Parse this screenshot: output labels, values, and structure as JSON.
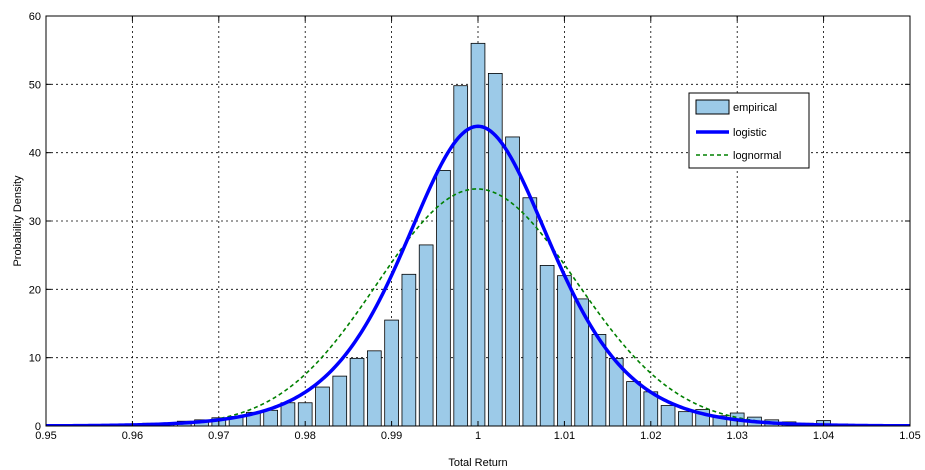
{
  "chart_data": {
    "type": "bar",
    "xlabel": "Total Return",
    "ylabel": "Probability Density",
    "xlim": [
      0.95,
      1.05
    ],
    "ylim": [
      0,
      60
    ],
    "xticks": [
      0.95,
      0.96,
      0.97,
      0.98,
      0.99,
      1,
      1.01,
      1.02,
      1.03,
      1.04,
      1.05
    ],
    "xtick_labels": [
      "0.95",
      "0.96",
      "0.97",
      "0.98",
      "0.99",
      "1",
      "1.01",
      "1.02",
      "1.03",
      "1.04",
      "1.05"
    ],
    "yticks": [
      0,
      10,
      20,
      30,
      40,
      50,
      60
    ],
    "ytick_labels": [
      "0",
      "10",
      "20",
      "30",
      "40",
      "50",
      "60"
    ],
    "grid": true,
    "legend_position": "top-right",
    "bin_width": 0.002,
    "histogram": {
      "name": "empirical",
      "color": "#9ccae8",
      "edge_color": "#000000",
      "centers": [
        0.95,
        0.952,
        0.954,
        0.956,
        0.958,
        0.96,
        0.962,
        0.964,
        0.966,
        0.968,
        0.97,
        0.972,
        0.974,
        0.976,
        0.978,
        0.98,
        0.982,
        0.984,
        0.986,
        0.988,
        0.99,
        0.992,
        0.994,
        0.996,
        0.998,
        1.0,
        1.002,
        1.004,
        1.006,
        1.008,
        1.01,
        1.012,
        1.014,
        1.016,
        1.018,
        1.02,
        1.022,
        1.024,
        1.026,
        1.028,
        1.03,
        1.032,
        1.034,
        1.036,
        1.038,
        1.04,
        1.042,
        1.044,
        1.046,
        1.048,
        1.05
      ],
      "values": [
        0.2,
        0.1,
        0.1,
        0.1,
        0.1,
        0.2,
        0.4,
        0.4,
        0.7,
        0.9,
        1.2,
        1.4,
        2.0,
        2.3,
        3.4,
        3.4,
        5.7,
        7.3,
        9.9,
        11.0,
        15.5,
        22.2,
        26.5,
        37.4,
        49.8,
        56.0,
        51.6,
        42.3,
        33.4,
        23.5,
        22.0,
        18.6,
        13.4,
        9.9,
        6.5,
        5.0,
        3.0,
        2.1,
        2.4,
        1.5,
        1.9,
        1.3,
        0.9,
        0.6,
        0.4,
        0.8,
        0.3,
        0.2,
        0.2,
        0.2,
        0.2
      ]
    },
    "series": [
      {
        "name": "logistic",
        "color": "#0000ff",
        "style": "solid",
        "mu": 1.0,
        "s": 0.0057
      },
      {
        "name": "lognormal",
        "color": "#008000",
        "style": "dashed",
        "mu": 0.0,
        "sigma": 0.0115
      }
    ]
  }
}
